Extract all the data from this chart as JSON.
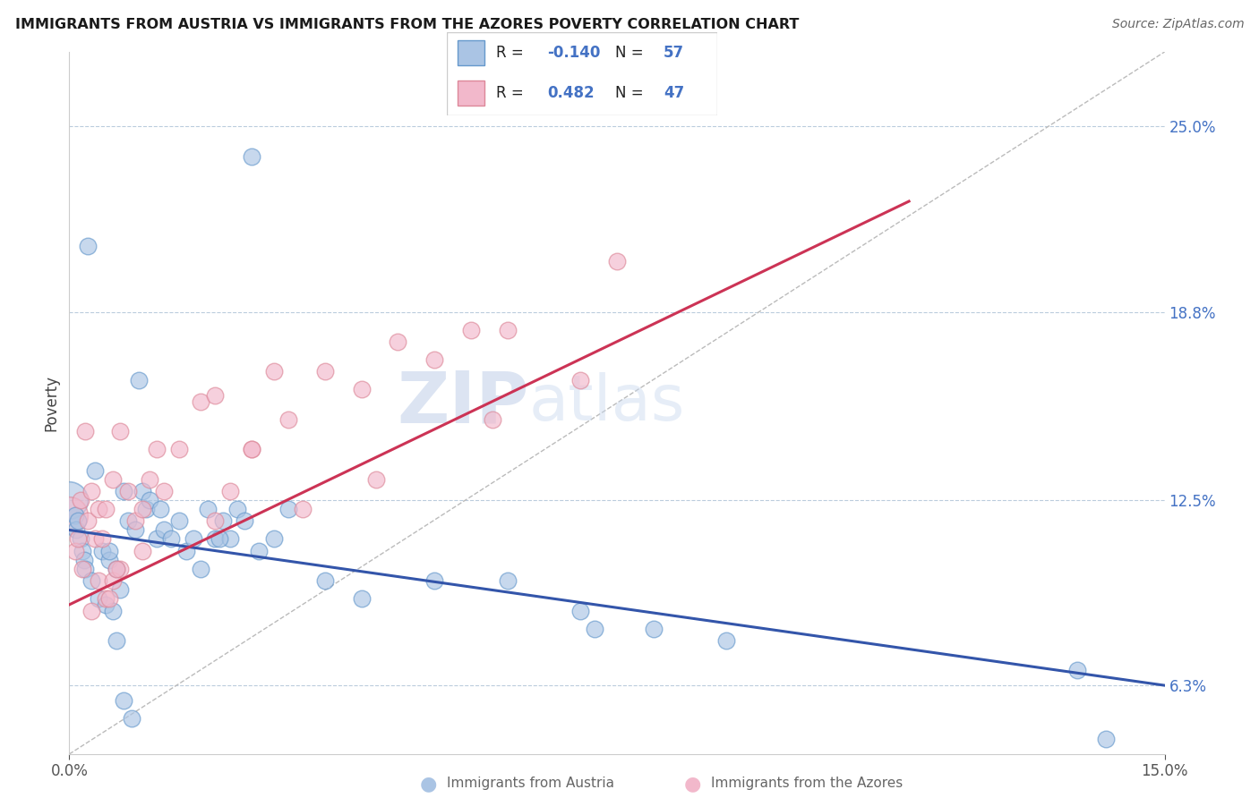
{
  "title": "IMMIGRANTS FROM AUSTRIA VS IMMIGRANTS FROM THE AZORES POVERTY CORRELATION CHART",
  "source": "Source: ZipAtlas.com",
  "ylabel": "Poverty",
  "xlim": [
    0.0,
    15.0
  ],
  "ylim": [
    4.0,
    27.5
  ],
  "yticks": [
    6.3,
    12.5,
    18.8,
    25.0
  ],
  "xtick_vals": [
    0.0,
    15.0
  ],
  "xtick_labels": [
    "0.0%",
    "15.0%"
  ],
  "ytick_labels": [
    "6.3%",
    "12.5%",
    "18.8%",
    "25.0%"
  ],
  "austria_color": "#aac4e4",
  "azores_color": "#f2b8cb",
  "austria_edge": "#6699cc",
  "azores_edge": "#dd8899",
  "trend_austria_color": "#3355aa",
  "trend_azores_color": "#cc3355",
  "r_color": "#4472c4",
  "legend_r_austria": "-0.140",
  "legend_n_austria": "57",
  "legend_r_azores": "0.482",
  "legend_n_azores": "47",
  "legend_label_austria": "Immigrants from Austria",
  "legend_label_azores": "Immigrants from the Azores",
  "watermark_zip": "ZIP",
  "watermark_atlas": "atlas",
  "background_color": "#ffffff",
  "grid_color": "#bbccdd",
  "austria_trend_x": [
    0.0,
    15.0
  ],
  "austria_trend_y": [
    11.5,
    6.3
  ],
  "azores_trend_x": [
    0.0,
    11.5
  ],
  "azores_trend_y": [
    9.0,
    22.5
  ],
  "ref_line_x": [
    0.0,
    15.0
  ],
  "ref_line_y": [
    4.0,
    27.5
  ],
  "austria_x": [
    0.08,
    0.25,
    2.5,
    0.1,
    0.12,
    0.15,
    0.18,
    0.2,
    0.22,
    0.3,
    0.35,
    0.4,
    0.45,
    0.5,
    0.55,
    0.6,
    0.65,
    0.7,
    0.75,
    0.8,
    0.9,
    1.0,
    1.05,
    1.1,
    1.2,
    1.3,
    1.4,
    1.5,
    1.6,
    1.7,
    1.8,
    1.9,
    2.0,
    2.1,
    2.2,
    2.3,
    2.4,
    2.6,
    2.8,
    3.0,
    3.5,
    4.0,
    5.0,
    6.0,
    7.0,
    8.0,
    9.0,
    0.55,
    0.65,
    0.75,
    0.85,
    0.95,
    1.25,
    2.05,
    13.8,
    14.2,
    7.2
  ],
  "austria_y": [
    12.0,
    21.0,
    24.0,
    11.5,
    11.8,
    11.2,
    10.8,
    10.5,
    10.2,
    9.8,
    13.5,
    9.2,
    10.8,
    9.0,
    10.5,
    8.8,
    10.2,
    9.5,
    12.8,
    11.8,
    11.5,
    12.8,
    12.2,
    12.5,
    11.2,
    11.5,
    11.2,
    11.8,
    10.8,
    11.2,
    10.2,
    12.2,
    11.2,
    11.8,
    11.2,
    12.2,
    11.8,
    10.8,
    11.2,
    12.2,
    9.8,
    9.2,
    9.8,
    9.8,
    8.8,
    8.2,
    7.8,
    10.8,
    7.8,
    5.8,
    5.2,
    16.5,
    12.2,
    11.2,
    6.8,
    4.5,
    8.2
  ],
  "austria_sizes": [
    180,
    180,
    180,
    180,
    180,
    180,
    180,
    180,
    180,
    180,
    180,
    180,
    180,
    180,
    180,
    180,
    180,
    180,
    180,
    180,
    180,
    180,
    180,
    180,
    180,
    180,
    180,
    180,
    180,
    180,
    180,
    180,
    180,
    180,
    180,
    180,
    180,
    180,
    180,
    180,
    180,
    180,
    180,
    180,
    180,
    180,
    180,
    180,
    180,
    180,
    180,
    180,
    180,
    180,
    180,
    180,
    180
  ],
  "austria_big_x": [
    0.0
  ],
  "austria_big_y": [
    12.5
  ],
  "austria_big_size": [
    900
  ],
  "azores_x": [
    0.08,
    0.12,
    0.15,
    0.18,
    0.22,
    0.25,
    0.3,
    0.35,
    0.4,
    0.45,
    0.5,
    0.6,
    0.7,
    0.8,
    0.9,
    1.0,
    1.1,
    1.2,
    1.5,
    1.8,
    2.0,
    2.2,
    2.5,
    2.8,
    3.0,
    3.5,
    4.0,
    4.5,
    5.0,
    5.5,
    6.0,
    7.5,
    0.3,
    0.4,
    0.5,
    0.6,
    0.7,
    1.0,
    1.3,
    2.0,
    2.5,
    3.2,
    4.2,
    5.8,
    7.0,
    0.55,
    0.65
  ],
  "azores_y": [
    10.8,
    11.2,
    12.5,
    10.2,
    14.8,
    11.8,
    12.8,
    11.2,
    12.2,
    11.2,
    12.2,
    13.2,
    14.8,
    12.8,
    11.8,
    12.2,
    13.2,
    14.2,
    14.2,
    15.8,
    16.0,
    12.8,
    14.2,
    16.8,
    15.2,
    16.8,
    16.2,
    17.8,
    17.2,
    18.2,
    18.2,
    20.5,
    8.8,
    9.8,
    9.2,
    9.8,
    10.2,
    10.8,
    12.8,
    11.8,
    14.2,
    12.2,
    13.2,
    15.2,
    16.5,
    9.2,
    10.2
  ],
  "azores_big_x": [
    0.0
  ],
  "azores_big_y": [
    12.0
  ],
  "azores_big_size": [
    900
  ]
}
